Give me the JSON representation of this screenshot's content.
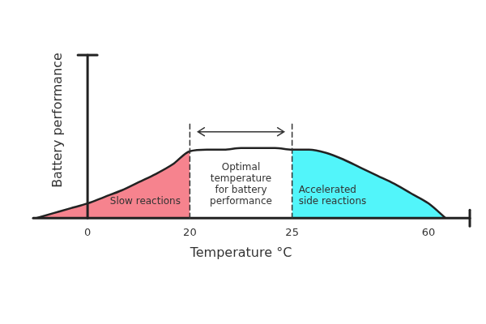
{
  "chart_data": {
    "type": "line",
    "x_label": "Temperature °C",
    "y_label": "Battery performance",
    "categories": [
      null,
      null,
      null,
      "0",
      null,
      null,
      null,
      null,
      null,
      "20",
      null,
      null,
      null,
      null,
      null,
      "25",
      null,
      null,
      null,
      null,
      null,
      null,
      null,
      "60",
      null
    ],
    "values": [
      0,
      3,
      6,
      9,
      13,
      17,
      22,
      27,
      33,
      41,
      42,
      42,
      43,
      43,
      43,
      42,
      42,
      40,
      36,
      31,
      26,
      21,
      15,
      9,
      0
    ],
    "color": "#222222",
    "ylim": [
      0,
      100
    ],
    "tick_labels": "x",
    "grid": false,
    "annotations": [
      {
        "text": "Slow reactions",
        "end": "20",
        "color": "#f6838e"
      },
      {
        "text": "Optimal temperature for battery performance",
        "start": "20",
        "end": "25"
      },
      {
        "text": "Accelerated side reactions",
        "start": "25",
        "color": "#52f5fa"
      }
    ]
  }
}
